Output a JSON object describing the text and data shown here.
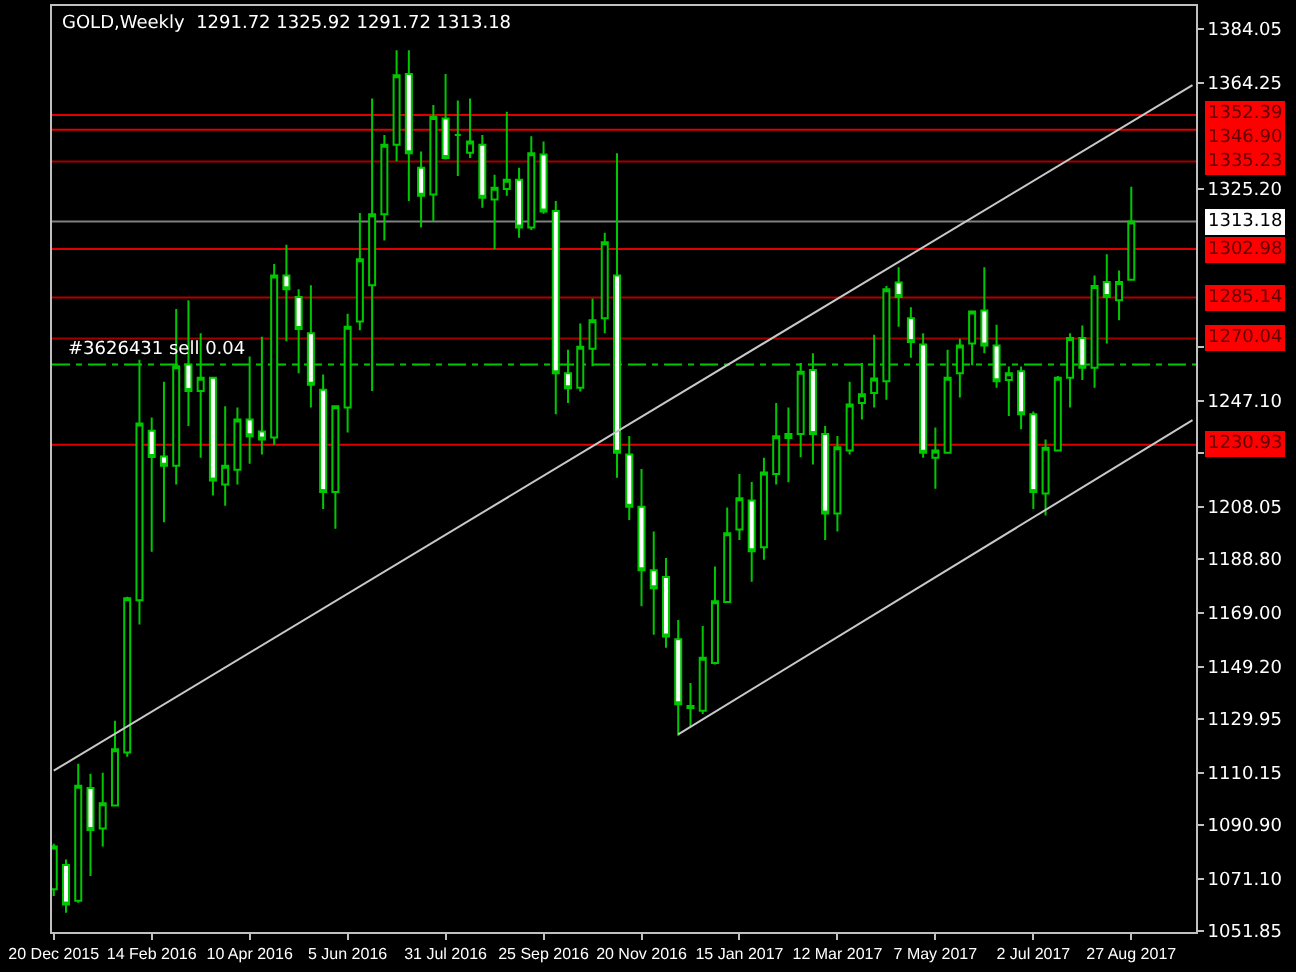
{
  "chart_data": {
    "type": "candlestick",
    "title": "GOLD,Weekly  1291.72 1325.92 1291.72 1313.18",
    "color": "#00c800",
    "x": [
      "2015-12-20",
      "2015-12-27",
      "2016-01-03",
      "2016-01-10",
      "2016-01-17",
      "2016-01-24",
      "2016-01-31",
      "2016-02-07",
      "2016-02-14",
      "2016-02-21",
      "2016-02-28",
      "2016-03-06",
      "2016-03-13",
      "2016-03-20",
      "2016-03-27",
      "2016-04-03",
      "2016-04-10",
      "2016-04-17",
      "2016-04-24",
      "2016-05-01",
      "2016-05-08",
      "2016-05-15",
      "2016-05-22",
      "2016-05-29",
      "2016-06-05",
      "2016-06-12",
      "2016-06-19",
      "2016-06-26",
      "2016-07-03",
      "2016-07-10",
      "2016-07-17",
      "2016-07-24",
      "2016-07-31",
      "2016-08-07",
      "2016-08-14",
      "2016-08-21",
      "2016-08-28",
      "2016-09-04",
      "2016-09-11",
      "2016-09-18",
      "2016-09-25",
      "2016-10-02",
      "2016-10-09",
      "2016-10-16",
      "2016-10-23",
      "2016-10-30",
      "2016-11-06",
      "2016-11-13",
      "2016-11-20",
      "2016-11-27",
      "2016-12-04",
      "2016-12-11",
      "2016-12-18",
      "2016-12-25",
      "2017-01-01",
      "2017-01-08",
      "2017-01-15",
      "2017-01-22",
      "2017-01-29",
      "2017-02-05",
      "2017-02-12",
      "2017-02-19",
      "2017-02-26",
      "2017-03-05",
      "2017-03-12",
      "2017-03-19",
      "2017-03-26",
      "2017-04-02",
      "2017-04-09",
      "2017-04-16",
      "2017-04-23",
      "2017-04-30",
      "2017-05-07",
      "2017-05-14",
      "2017-05-21",
      "2017-05-28",
      "2017-06-04",
      "2017-06-11",
      "2017-06-18",
      "2017-06-25",
      "2017-07-02",
      "2017-07-09",
      "2017-07-16",
      "2017-07-23",
      "2017-07-30",
      "2017-08-06",
      "2017-08-13",
      "2017-08-20",
      "2017-08-27"
    ],
    "ohlc": [
      [
        1067.2,
        1084.0,
        1064.8,
        1083.0
      ],
      [
        1076.2,
        1078.2,
        1058.6,
        1061.6
      ],
      [
        1063.0,
        1113.5,
        1062.3,
        1105.4
      ],
      [
        1104.5,
        1109.8,
        1072.1,
        1089.1
      ],
      [
        1089.6,
        1110.1,
        1083.0,
        1098.9
      ],
      [
        1098.1,
        1129.3,
        1098.0,
        1118.8
      ],
      [
        1117.6,
        1175.0,
        1116.0,
        1174.4
      ],
      [
        1173.7,
        1262.2,
        1164.7,
        1238.8
      ],
      [
        1236.1,
        1241.0,
        1191.5,
        1226.4
      ],
      [
        1226.6,
        1254.1,
        1202.4,
        1223.2
      ],
      [
        1223.2,
        1280.9,
        1216.3,
        1259.8
      ],
      [
        1260.5,
        1284.1,
        1237.8,
        1250.7
      ],
      [
        1250.7,
        1272.0,
        1226.1,
        1255.6
      ],
      [
        1255.6,
        1256.0,
        1212.2,
        1217.8
      ],
      [
        1216.3,
        1245.1,
        1208.5,
        1223.2
      ],
      [
        1221.7,
        1244.6,
        1216.3,
        1240.2
      ],
      [
        1240.2,
        1263.4,
        1223.9,
        1234.1
      ],
      [
        1235.8,
        1270.7,
        1227.3,
        1232.9
      ],
      [
        1233.6,
        1297.5,
        1230.9,
        1293.3
      ],
      [
        1293.3,
        1304.6,
        1269.0,
        1288.2
      ],
      [
        1285.3,
        1288.2,
        1257.3,
        1273.6
      ],
      [
        1272.0,
        1289.7,
        1244.6,
        1253.0
      ],
      [
        1251.2,
        1256.8,
        1207.3,
        1213.5
      ],
      [
        1213.5,
        1245.5,
        1200.0,
        1245.1
      ],
      [
        1244.6,
        1279.2,
        1235.4,
        1274.4
      ],
      [
        1276.3,
        1316.3,
        1273.1,
        1299.2
      ],
      [
        1289.7,
        1358.4,
        1250.7,
        1315.8
      ],
      [
        1315.8,
        1345.0,
        1306.1,
        1341.4
      ],
      [
        1341.4,
        1376.2,
        1335.3,
        1367.0
      ],
      [
        1367.5,
        1376.2,
        1320.7,
        1338.3
      ],
      [
        1332.9,
        1338.9,
        1310.9,
        1322.6
      ],
      [
        1323.1,
        1356.0,
        1313.3,
        1351.6
      ],
      [
        1351.1,
        1367.5,
        1336.0,
        1336.5
      ],
      [
        1345.0,
        1357.7,
        1329.9,
        1345.0
      ],
      [
        1338.5,
        1358.4,
        1336.5,
        1342.6
      ],
      [
        1341.4,
        1345.0,
        1318.2,
        1321.9
      ],
      [
        1321.2,
        1330.4,
        1302.9,
        1325.6
      ],
      [
        1325.1,
        1353.6,
        1322.6,
        1328.5
      ],
      [
        1328.5,
        1332.9,
        1307.2,
        1310.9
      ],
      [
        1310.9,
        1344.5,
        1310.0,
        1338.3
      ],
      [
        1337.8,
        1342.6,
        1316.0,
        1316.8
      ],
      [
        1317.0,
        1320.7,
        1242.2,
        1257.3
      ],
      [
        1257.3,
        1265.9,
        1246.3,
        1251.7
      ],
      [
        1251.9,
        1275.6,
        1250.5,
        1267.0
      ],
      [
        1266.3,
        1284.8,
        1259.8,
        1276.8
      ],
      [
        1277.5,
        1309.0,
        1272.0,
        1305.5
      ],
      [
        1293.3,
        1338.3,
        1218.8,
        1228.0
      ],
      [
        1227.3,
        1234.2,
        1203.2,
        1208.1
      ],
      [
        1208.1,
        1222.0,
        1171.5,
        1184.7
      ],
      [
        1184.7,
        1199.0,
        1161.0,
        1178.1
      ],
      [
        1182.2,
        1189.2,
        1156.2,
        1160.3
      ],
      [
        1159.3,
        1166.4,
        1123.8,
        1135.4
      ],
      [
        1134.0,
        1143.2,
        1126.9,
        1134.7
      ],
      [
        1133.0,
        1164.2,
        1131.8,
        1152.5
      ],
      [
        1150.6,
        1186.1,
        1150.0,
        1173.3
      ],
      [
        1173.0,
        1207.8,
        1172.8,
        1198.3
      ],
      [
        1199.7,
        1220.2,
        1195.9,
        1211.2
      ],
      [
        1210.4,
        1217.2,
        1180.5,
        1191.7
      ],
      [
        1193.2,
        1226.1,
        1188.6,
        1220.7
      ],
      [
        1220.2,
        1246.3,
        1216.3,
        1234.1
      ],
      [
        1233.4,
        1244.6,
        1217.1,
        1234.9
      ],
      [
        1234.9,
        1261.0,
        1226.3,
        1257.8
      ],
      [
        1258.5,
        1264.6,
        1223.7,
        1234.9
      ],
      [
        1234.9,
        1237.8,
        1195.9,
        1205.6
      ],
      [
        1205.6,
        1234.2,
        1199.0,
        1230.0
      ],
      [
        1228.8,
        1254.1,
        1227.3,
        1245.8
      ],
      [
        1246.3,
        1261.0,
        1240.2,
        1249.5
      ],
      [
        1250.0,
        1271.4,
        1244.6,
        1255.3
      ],
      [
        1254.3,
        1289.4,
        1247.5,
        1288.2
      ],
      [
        1290.7,
        1296.3,
        1274.4,
        1285.3
      ],
      [
        1277.5,
        1281.6,
        1263.0,
        1268.8
      ],
      [
        1267.8,
        1272.0,
        1226.1,
        1228.0
      ],
      [
        1226.1,
        1237.3,
        1214.7,
        1228.8
      ],
      [
        1228.0,
        1265.9,
        1228.0,
        1255.6
      ],
      [
        1257.3,
        1270.0,
        1248.3,
        1267.5
      ],
      [
        1268.2,
        1280.4,
        1260.2,
        1280.0
      ],
      [
        1280.4,
        1296.3,
        1264.6,
        1267.5
      ],
      [
        1267.5,
        1275.1,
        1251.9,
        1254.3
      ],
      [
        1254.8,
        1259.7,
        1241.5,
        1257.3
      ],
      [
        1258.0,
        1259.7,
        1236.6,
        1242.2
      ],
      [
        1242.2,
        1243.2,
        1207.3,
        1213.5
      ],
      [
        1213.0,
        1232.9,
        1204.9,
        1229.8
      ],
      [
        1228.8,
        1256.2,
        1228.5,
        1255.6
      ],
      [
        1255.6,
        1272.0,
        1244.6,
        1270.2
      ],
      [
        1270.2,
        1274.8,
        1254.8,
        1259.3
      ],
      [
        1259.3,
        1293.3,
        1251.9,
        1289.4
      ],
      [
        1290.9,
        1301.1,
        1268.2,
        1285.3
      ],
      [
        1284.1,
        1295.1,
        1276.8,
        1290.9
      ],
      [
        1291.72,
        1325.92,
        1291.72,
        1313.18
      ]
    ],
    "series": [
      {
        "type": "line",
        "color": "#c8c8c8",
        "x": [
          "2015-12-20",
          "2017-10-01"
        ],
        "values": [
          1110.9,
          1363.4
        ]
      },
      {
        "type": "line",
        "color": "#c8c8c8",
        "x": [
          "2016-12-11",
          "2017-10-01"
        ],
        "values": [
          1124.3,
          1240.0
        ]
      }
    ],
    "xlim": [
      "2015-12-19",
      "2017-10-03"
    ],
    "xticks": [
      {
        "value": "2015-12-20",
        "label": "20 Dec 2015"
      },
      {
        "value": "2016-02-14",
        "label": "14 Feb 2016"
      },
      {
        "value": "2016-04-10",
        "label": "10 Apr 2016"
      },
      {
        "value": "2016-06-05",
        "label": "5 Jun 2016"
      },
      {
        "value": "2016-07-31",
        "label": "31 Jul 2016"
      },
      {
        "value": "2016-09-25",
        "label": "25 Sep 2016"
      },
      {
        "value": "2016-11-20",
        "label": "20 Nov 2016"
      },
      {
        "value": "2017-01-15",
        "label": "15 Jan 2017"
      },
      {
        "value": "2017-03-12",
        "label": "12 Mar 2017"
      },
      {
        "value": "2017-05-07",
        "label": "7 May 2017"
      },
      {
        "value": "2017-07-02",
        "label": "2 Jul 2017"
      },
      {
        "value": "2017-08-27",
        "label": "27 Aug 2017"
      }
    ],
    "ylim": [
      1051.5,
      1392.5
    ],
    "yticks": [
      {
        "value": 1384.05,
        "label": "1384.05"
      },
      {
        "value": 1364.25,
        "label": "1364.25"
      },
      {
        "value": 1325.2,
        "label": "1325.20"
      },
      {
        "value": 1266.9,
        "label": null
      },
      {
        "value": 1247.1,
        "label": "1247.10"
      },
      {
        "value": 1227.85,
        "label": null
      },
      {
        "value": 1208.05,
        "label": "1208.05"
      },
      {
        "value": 1188.8,
        "label": "1188.80"
      },
      {
        "value": 1169.0,
        "label": "1169.00"
      },
      {
        "value": 1149.2,
        "label": "1149.20"
      },
      {
        "value": 1129.95,
        "label": "1129.95"
      },
      {
        "value": 1110.15,
        "label": "1110.15"
      },
      {
        "value": 1090.9,
        "label": "1090.90"
      },
      {
        "value": 1071.1,
        "label": "1071.10"
      },
      {
        "value": 1051.85,
        "label": "1051.85"
      }
    ],
    "ref_lines": [
      {
        "axis": "y",
        "value": 1352.39,
        "label": "1352.39",
        "color": "#e00000"
      },
      {
        "axis": "y",
        "value": 1346.9,
        "label": "1346.90",
        "color": "#e00000"
      },
      {
        "axis": "y",
        "value": 1335.23,
        "label": "1335.23",
        "color": "#a00000"
      },
      {
        "axis": "y",
        "value": 1313.18,
        "label": "1313.18",
        "color": "#808080"
      },
      {
        "axis": "y",
        "value": 1302.98,
        "label": "1302.98",
        "color": "#e00000"
      },
      {
        "axis": "y",
        "value": 1285.14,
        "label": "1285.14",
        "color": "#b00000"
      },
      {
        "axis": "y",
        "value": 1270.04,
        "label": "1270.04",
        "color": "#a00000"
      },
      {
        "axis": "y",
        "value": 1260.5,
        "label": "#3626431 sell 0.04",
        "color": "#00c800",
        "line_style": "dashdot"
      },
      {
        "axis": "y",
        "value": 1230.93,
        "label": "1230.93",
        "color": "#e00000"
      }
    ],
    "grid": false
  }
}
